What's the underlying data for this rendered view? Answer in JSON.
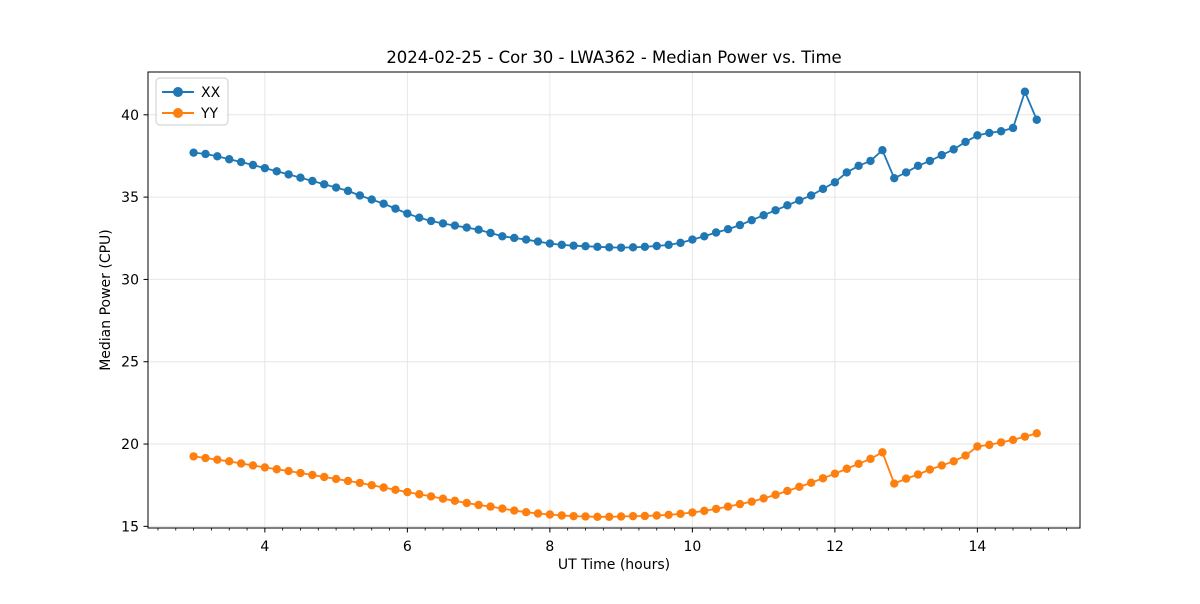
{
  "figure": {
    "title": "2024-02-25 - Cor 30 - LWA362 - Median Power vs. Time",
    "xlabel": "UT Time (hours)",
    "ylabel": "Median Power (CPU)"
  },
  "legend": {
    "entries": [
      {
        "label": "XX",
        "color": "#1f77b4"
      },
      {
        "label": "YY",
        "color": "#ff7f0e"
      }
    ]
  },
  "colors": {
    "series_xx": "#1f77b4",
    "series_yy": "#ff7f0e",
    "grid": "#e6e6e6",
    "spine": "#000000",
    "background": "#ffffff"
  },
  "chart_data": {
    "type": "line",
    "title": "2024-02-25 - Cor 30 - LWA362 - Median Power vs. Time",
    "xlabel": "UT Time (hours)",
    "ylabel": "Median Power (CPU)",
    "xlim": [
      2.36,
      15.44
    ],
    "ylim": [
      14.9,
      42.6
    ],
    "x_ticks": [
      4,
      6,
      8,
      10,
      12,
      14
    ],
    "y_ticks": [
      15,
      20,
      25,
      30,
      35,
      40
    ],
    "x_minor_step": 0.25,
    "grid": true,
    "legend_position": "upper-left",
    "marker": "circle",
    "x": [
      3.0,
      3.167,
      3.333,
      3.5,
      3.667,
      3.833,
      4.0,
      4.167,
      4.333,
      4.5,
      4.667,
      4.833,
      5.0,
      5.167,
      5.333,
      5.5,
      5.667,
      5.833,
      6.0,
      6.167,
      6.333,
      6.5,
      6.667,
      6.833,
      7.0,
      7.167,
      7.333,
      7.5,
      7.667,
      7.833,
      8.0,
      8.167,
      8.333,
      8.5,
      8.667,
      8.833,
      9.0,
      9.167,
      9.333,
      9.5,
      9.667,
      9.833,
      10.0,
      10.167,
      10.333,
      10.5,
      10.667,
      10.833,
      11.0,
      11.167,
      11.333,
      11.5,
      11.667,
      11.833,
      12.0,
      12.167,
      12.333,
      12.5,
      12.667,
      12.833,
      13.0,
      13.167,
      13.333,
      13.5,
      13.667,
      13.833,
      14.0,
      14.167,
      14.333,
      14.5,
      14.667,
      14.833
    ],
    "series": [
      {
        "name": "XX",
        "color": "#1f77b4",
        "values": [
          37.7,
          37.62,
          37.48,
          37.3,
          37.13,
          36.95,
          36.76,
          36.57,
          36.38,
          36.18,
          35.98,
          35.78,
          35.58,
          35.38,
          35.1,
          34.85,
          34.6,
          34.3,
          34.0,
          33.75,
          33.55,
          33.4,
          33.27,
          33.15,
          33.02,
          32.82,
          32.62,
          32.52,
          32.42,
          32.3,
          32.18,
          32.1,
          32.05,
          32.02,
          31.98,
          31.95,
          31.93,
          31.95,
          31.98,
          32.03,
          32.1,
          32.22,
          32.42,
          32.62,
          32.85,
          33.05,
          33.3,
          33.6,
          33.9,
          34.2,
          34.5,
          34.8,
          35.1,
          35.5,
          35.9,
          36.5,
          36.9,
          37.2,
          37.85,
          36.15,
          36.5,
          36.9,
          37.2,
          37.55,
          37.9,
          38.35,
          38.75,
          38.9,
          39.0,
          39.2,
          41.4,
          39.7
        ]
      },
      {
        "name": "YY",
        "color": "#ff7f0e",
        "values": [
          19.25,
          19.15,
          19.05,
          18.95,
          18.82,
          18.7,
          18.58,
          18.47,
          18.36,
          18.24,
          18.12,
          18.0,
          17.88,
          17.76,
          17.64,
          17.5,
          17.36,
          17.22,
          17.08,
          16.95,
          16.82,
          16.68,
          16.55,
          16.42,
          16.3,
          16.2,
          16.08,
          15.96,
          15.86,
          15.78,
          15.72,
          15.66,
          15.62,
          15.6,
          15.58,
          15.58,
          15.6,
          15.62,
          15.63,
          15.66,
          15.7,
          15.76,
          15.84,
          15.94,
          16.06,
          16.2,
          16.35,
          16.5,
          16.7,
          16.92,
          17.15,
          17.4,
          17.65,
          17.92,
          18.2,
          18.5,
          18.8,
          19.1,
          19.5,
          17.6,
          17.9,
          18.15,
          18.45,
          18.7,
          18.95,
          19.3,
          19.85,
          19.95,
          20.1,
          20.25,
          20.45,
          20.65
        ]
      }
    ]
  }
}
